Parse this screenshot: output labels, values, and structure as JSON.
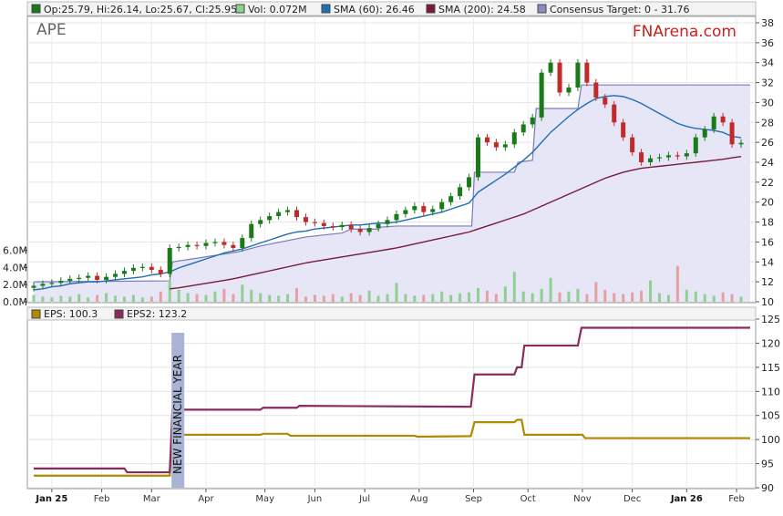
{
  "chart_data": [
    {
      "type": "candlestick",
      "ticker": "APE",
      "watermark": "FNArena.com",
      "legend": [
        {
          "label": "Op:25.79, Hi:26.14, Lo:25.67, Cl:25.95",
          "color": "#1a7a1a"
        },
        {
          "label": "Vol: 0.072M",
          "color": "#8ed18e"
        },
        {
          "label": "SMA (60): 26.46",
          "color": "#1f6fb5"
        },
        {
          "label": "SMA (200): 24.58",
          "color": "#7a1a3a"
        },
        {
          "label": "Consensus Target: 0 - 31.76",
          "color": "#8a8ac8"
        }
      ],
      "ylim": [
        10,
        38
      ],
      "yticks": [
        10,
        12,
        14,
        16,
        18,
        20,
        22,
        24,
        26,
        28,
        30,
        32,
        34,
        36,
        38
      ],
      "volume_ticks": [
        "0.0M",
        "2.0M",
        "4.0M",
        "6.0M"
      ],
      "volume_ylim": [
        0,
        6.5
      ],
      "x_labels": [
        "Jan 25",
        "Feb",
        "Mar",
        "Apr",
        "May",
        "Jun",
        "Jul",
        "Aug",
        "Sep",
        "Oct",
        "Nov",
        "Dec",
        "Jan 26",
        "Feb"
      ],
      "x_label_bold": [
        "Jan 25",
        "Jan 26"
      ],
      "x_label_pos": [
        2,
        7.5,
        13,
        19,
        25.5,
        31,
        36.5,
        42.5,
        48.5,
        54.5,
        60.5,
        66,
        72,
        77.5
      ],
      "close_weekly": [
        11.6,
        11.8,
        11.9,
        12.1,
        12.3,
        12.4,
        12.6,
        12.2,
        12.5,
        12.8,
        13.1,
        13.4,
        13.5,
        13.2,
        12.8,
        15.4,
        15.5,
        15.7,
        15.6,
        15.9,
        16.0,
        15.7,
        15.4,
        16.4,
        17.8,
        18.2,
        18.6,
        19.0,
        19.2,
        18.5,
        18.0,
        17.9,
        17.6,
        17.5,
        17.7,
        17.3,
        17.0,
        17.4,
        17.8,
        18.2,
        18.8,
        19.2,
        19.6,
        19.0,
        19.3,
        20.0,
        20.6,
        21.5,
        22.5,
        26.5,
        26.0,
        25.5,
        25.8,
        27.0,
        27.8,
        28.5,
        33.0,
        34.0,
        31.0,
        31.5,
        34.0,
        32.0,
        30.5,
        29.8,
        28.0,
        26.5,
        25.0,
        24.0,
        24.4,
        24.5,
        24.7,
        24.6,
        24.9,
        26.5,
        27.3,
        28.6,
        28.0,
        25.8,
        25.95
      ],
      "sma60": [
        11.2,
        11.3,
        11.5,
        11.6,
        11.8,
        11.9,
        12.0,
        12.0,
        12.1,
        12.2,
        12.3,
        12.4,
        12.5,
        12.7,
        12.8,
        13.0,
        13.4,
        13.7,
        14.0,
        14.3,
        14.6,
        14.9,
        15.1,
        15.3,
        15.6,
        15.9,
        16.2,
        16.5,
        16.8,
        17.0,
        17.1,
        17.3,
        17.4,
        17.5,
        17.6,
        17.7,
        17.7,
        17.8,
        17.9,
        17.9,
        18.0,
        18.2,
        18.4,
        18.6,
        18.8,
        19.0,
        19.3,
        19.6,
        19.9,
        21.0,
        21.6,
        22.2,
        22.8,
        23.5,
        24.2,
        25.0,
        26.0,
        27.0,
        27.8,
        28.6,
        29.3,
        29.9,
        30.4,
        30.6,
        30.7,
        30.6,
        30.3,
        29.9,
        29.4,
        28.9,
        28.4,
        27.9,
        27.6,
        27.4,
        27.3,
        27.2,
        27.0,
        26.6,
        26.46
      ],
      "sma200": [
        null,
        null,
        null,
        null,
        null,
        null,
        null,
        null,
        null,
        null,
        null,
        null,
        null,
        null,
        null,
        11.3,
        11.4,
        11.55,
        11.7,
        11.85,
        12.0,
        12.15,
        12.3,
        12.5,
        12.7,
        12.9,
        13.1,
        13.3,
        13.5,
        13.7,
        13.9,
        14.05,
        14.2,
        14.35,
        14.5,
        14.65,
        14.8,
        14.95,
        15.1,
        15.25,
        15.4,
        15.6,
        15.8,
        16.0,
        16.2,
        16.4,
        16.6,
        16.8,
        17.0,
        17.3,
        17.6,
        17.9,
        18.2,
        18.5,
        18.8,
        19.2,
        19.6,
        20.0,
        20.4,
        20.8,
        21.2,
        21.6,
        22.0,
        22.4,
        22.7,
        23.0,
        23.2,
        23.4,
        23.5,
        23.6,
        23.7,
        23.8,
        23.9,
        24.0,
        24.1,
        24.2,
        24.3,
        24.45,
        24.58
      ],
      "consensus_target_steps": [
        [
          0,
          12.0
        ],
        [
          15,
          12.1
        ],
        [
          15.3,
          14.0
        ],
        [
          22.5,
          15.0
        ],
        [
          25,
          15.6
        ],
        [
          30,
          16.5
        ],
        [
          34,
          16.9
        ],
        [
          35,
          17.3
        ],
        [
          38,
          17.3
        ],
        [
          38.3,
          17.5
        ],
        [
          40,
          17.6
        ],
        [
          48.3,
          17.6
        ],
        [
          48.6,
          23.0
        ],
        [
          53,
          23.0
        ],
        [
          53.4,
          24.0
        ],
        [
          55,
          24.2
        ],
        [
          55.4,
          29.4
        ],
        [
          60,
          29.4
        ],
        [
          60.4,
          31.76
        ],
        [
          79,
          31.76
        ]
      ],
      "volume_weekly": [
        0.8,
        0.6,
        0.5,
        0.7,
        0.6,
        0.9,
        0.5,
        0.8,
        1.0,
        0.7,
        0.6,
        0.8,
        0.5,
        0.6,
        1.2,
        2.5,
        1.4,
        1.0,
        0.9,
        0.8,
        1.2,
        1.5,
        0.9,
        2.0,
        1.4,
        1.0,
        0.8,
        0.7,
        0.9,
        1.6,
        0.6,
        0.8,
        0.7,
        0.9,
        0.6,
        1.0,
        0.8,
        1.3,
        0.7,
        0.9,
        2.2,
        0.9,
        0.7,
        0.8,
        0.9,
        1.2,
        0.8,
        1.0,
        1.1,
        1.6,
        1.3,
        0.9,
        1.8,
        3.5,
        1.2,
        1.0,
        1.5,
        2.8,
        1.1,
        1.2,
        1.5,
        0.9,
        2.3,
        1.4,
        1.0,
        0.9,
        1.1,
        1.3,
        2.5,
        1.0,
        0.8,
        4.2,
        1.4,
        1.2,
        0.9,
        0.7,
        1.1,
        0.9,
        0.6
      ]
    },
    {
      "type": "line",
      "legend": [
        {
          "label": "EPS: 100.3",
          "color": "#b08a00"
        },
        {
          "label": "EPS2: 123.2",
          "color": "#8c2a5e"
        }
      ],
      "ylim": [
        90,
        125
      ],
      "yticks": [
        90,
        95,
        100,
        105,
        110,
        115,
        120,
        125
      ],
      "annotation": "NEW FINANCIAL YEAR",
      "eps_steps": [
        [
          0,
          92.5
        ],
        [
          15,
          92.5
        ],
        [
          15.3,
          101.0
        ],
        [
          25,
          101.0
        ],
        [
          25.3,
          101.2
        ],
        [
          28,
          101.2
        ],
        [
          28.3,
          100.8
        ],
        [
          42,
          100.8
        ],
        [
          42.3,
          100.6
        ],
        [
          48.2,
          100.7
        ],
        [
          48.6,
          103.6
        ],
        [
          53,
          103.6
        ],
        [
          53.3,
          104.1
        ],
        [
          53.8,
          104.1
        ],
        [
          54.1,
          101.0
        ],
        [
          60.5,
          101.0
        ],
        [
          60.8,
          100.3
        ],
        [
          79,
          100.3
        ]
      ],
      "eps2_steps": [
        [
          0,
          94.0
        ],
        [
          10,
          94.0
        ],
        [
          10.3,
          93.2
        ],
        [
          15,
          93.2
        ],
        [
          15.3,
          106.2
        ],
        [
          25,
          106.2
        ],
        [
          25.3,
          106.6
        ],
        [
          29,
          106.6
        ],
        [
          29.3,
          107.0
        ],
        [
          48.2,
          106.8
        ],
        [
          48.6,
          113.5
        ],
        [
          53,
          113.5
        ],
        [
          53.3,
          115.0
        ],
        [
          53.8,
          115.0
        ],
        [
          54.1,
          119.5
        ],
        [
          60,
          119.5
        ],
        [
          60.4,
          123.2
        ],
        [
          79,
          123.2
        ]
      ]
    }
  ]
}
